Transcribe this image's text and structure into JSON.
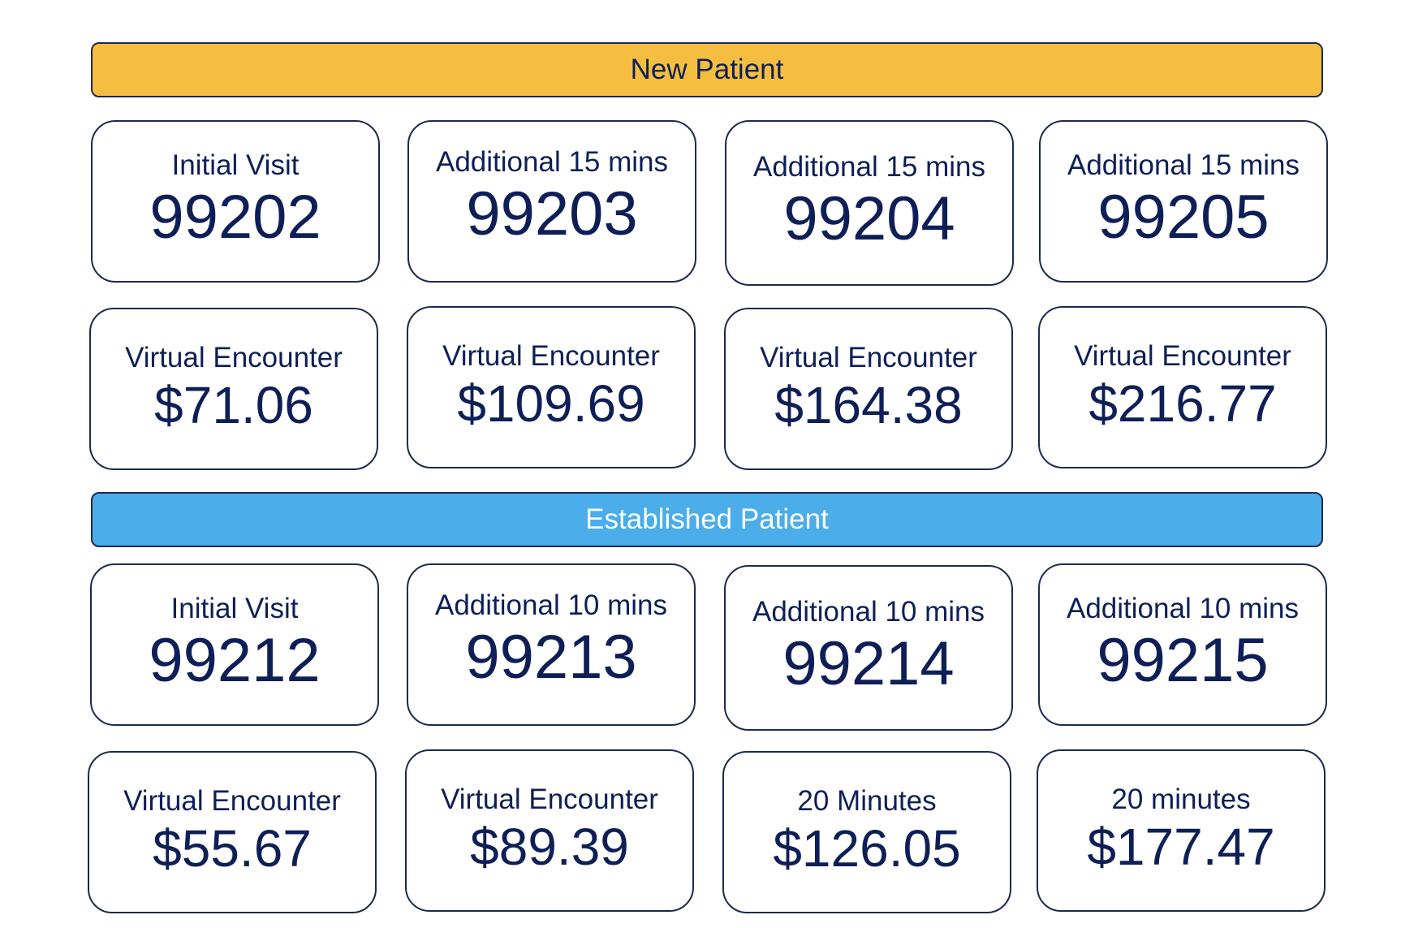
{
  "new_patient": {
    "title": "New Patient",
    "codes": [
      {
        "label": "Initial Visit",
        "value": "99202"
      },
      {
        "label": "Additional 15 mins",
        "value": "99203"
      },
      {
        "label": "Additional 15 mins",
        "value": "99204"
      },
      {
        "label": "Additional 15 mins",
        "value": "99205"
      }
    ],
    "prices": [
      {
        "label": "Virtual Encounter",
        "value": "$71.06"
      },
      {
        "label": "Virtual Encounter",
        "value": "$109.69"
      },
      {
        "label": "Virtual Encounter",
        "value": "$164.38"
      },
      {
        "label": "Virtual Encounter",
        "value": "$216.77"
      }
    ]
  },
  "established_patient": {
    "title": "Established Patient",
    "codes": [
      {
        "label": "Initial Visit",
        "value": "99212"
      },
      {
        "label": "Additional 10 mins",
        "value": "99213"
      },
      {
        "label": "Additional 10 mins",
        "value": "99214"
      },
      {
        "label": "Additional 10 mins",
        "value": "99215"
      }
    ],
    "prices": [
      {
        "label": "Virtual Encounter",
        "value": "$55.67"
      },
      {
        "label": "Virtual Encounter",
        "value": "$89.39"
      },
      {
        "label": "20 Minutes",
        "value": "$126.05"
      },
      {
        "label": "20 minutes",
        "value": "$177.47"
      }
    ]
  },
  "colors": {
    "new_banner": "#f5be40",
    "established_banner": "#4badea",
    "text": "#0e1f57"
  }
}
